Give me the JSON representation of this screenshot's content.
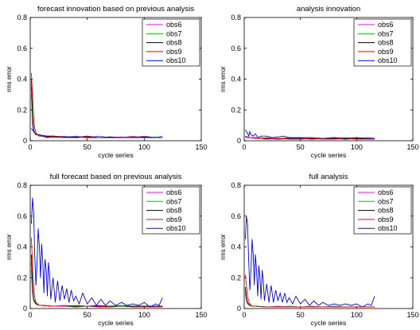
{
  "chart_data": [
    {
      "type": "line",
      "title": "forecast innovation based on previous analysis",
      "xlabel": "cycle series",
      "ylabel": "rms error",
      "xlim": [
        0,
        150
      ],
      "ylim": [
        0,
        0.8
      ],
      "xticks": [
        "0",
        "50",
        "100",
        "150"
      ],
      "yticks": [
        "0",
        "0.2",
        "0.4",
        "0.6",
        "0.8"
      ],
      "legend": "top-right",
      "grid": false,
      "series": [
        {
          "name": "obs6",
          "color": "#ff00ff",
          "x": [
            1,
            2,
            3,
            4,
            5,
            6,
            8,
            10,
            15,
            20,
            30,
            40,
            50,
            60,
            70,
            80,
            90,
            100,
            110,
            116
          ],
          "y": [
            0.3,
            0.1,
            0.06,
            0.05,
            0.05,
            0.04,
            0.04,
            0.035,
            0.03,
            0.03,
            0.025,
            0.03,
            0.02,
            0.03,
            0.02,
            0.025,
            0.02,
            0.03,
            0.02,
            0.03
          ]
        },
        {
          "name": "obs7",
          "color": "#00cc00",
          "x": [
            1,
            2,
            3,
            4,
            5,
            6,
            8,
            10,
            15,
            20,
            30,
            40,
            50,
            60,
            70,
            80,
            90,
            100,
            110,
            116
          ],
          "y": [
            0.35,
            0.12,
            0.06,
            0.05,
            0.04,
            0.04,
            0.035,
            0.03,
            0.03,
            0.02,
            0.03,
            0.02,
            0.03,
            0.02,
            0.025,
            0.02,
            0.03,
            0.02,
            0.025,
            0.02
          ]
        },
        {
          "name": "obs8",
          "color": "#000000",
          "x": [
            1,
            2,
            3,
            4,
            5,
            6,
            8,
            10,
            15,
            20,
            30,
            40,
            50,
            60,
            70,
            80,
            90,
            100,
            110,
            116
          ],
          "y": [
            0.4,
            0.15,
            0.07,
            0.05,
            0.04,
            0.04,
            0.03,
            0.03,
            0.025,
            0.03,
            0.02,
            0.025,
            0.02,
            0.02,
            0.025,
            0.02,
            0.02,
            0.025,
            0.02,
            0.02
          ]
        },
        {
          "name": "obs9",
          "color": "#ff0000",
          "x": [
            1,
            2,
            3,
            4,
            5,
            6,
            8,
            10,
            15,
            20,
            30,
            40,
            50,
            60,
            70,
            80,
            90,
            100,
            110,
            116
          ],
          "y": [
            0.44,
            0.3,
            0.15,
            0.08,
            0.05,
            0.04,
            0.03,
            0.03,
            0.02,
            0.025,
            0.02,
            0.02,
            0.025,
            0.02,
            0.02,
            0.02,
            0.025,
            0.02,
            0.02,
            0.02
          ]
        },
        {
          "name": "obs10",
          "color": "#0000ff",
          "x": [
            1,
            2,
            3,
            4,
            5,
            6,
            8,
            10,
            15,
            20,
            30,
            40,
            50,
            60,
            70,
            80,
            90,
            100,
            110,
            116
          ],
          "y": [
            0.08,
            0.07,
            0.06,
            0.05,
            0.045,
            0.04,
            0.04,
            0.035,
            0.03,
            0.03,
            0.025,
            0.02,
            0.03,
            0.02,
            0.02,
            0.02,
            0.02,
            0.02,
            0.02,
            0.02
          ]
        }
      ]
    },
    {
      "type": "line",
      "title": "analysis innovation",
      "xlabel": "cycle series",
      "ylabel": "rms error",
      "xlim": [
        0,
        150
      ],
      "ylim": [
        0,
        0.8
      ],
      "xticks": [
        "0",
        "50",
        "100",
        "150"
      ],
      "yticks": [
        "0",
        "0.2",
        "0.4",
        "0.6",
        "0.8"
      ],
      "legend": "top-right",
      "grid": false,
      "series": [
        {
          "name": "obs6",
          "color": "#ff00ff",
          "x": [
            1,
            3,
            5,
            10,
            15,
            20,
            30,
            40,
            50,
            60,
            70,
            80,
            90,
            100,
            110,
            116
          ],
          "y": [
            0.03,
            0.025,
            0.02,
            0.02,
            0.015,
            0.02,
            0.015,
            0.015,
            0.02,
            0.015,
            0.015,
            0.02,
            0.015,
            0.015,
            0.02,
            0.015
          ]
        },
        {
          "name": "obs7",
          "color": "#00cc00",
          "x": [
            1,
            3,
            5,
            10,
            15,
            20,
            30,
            40,
            50,
            60,
            70,
            80,
            90,
            100,
            110,
            116
          ],
          "y": [
            0.03,
            0.02,
            0.02,
            0.015,
            0.02,
            0.015,
            0.015,
            0.02,
            0.015,
            0.015,
            0.015,
            0.015,
            0.02,
            0.015,
            0.015,
            0.015
          ]
        },
        {
          "name": "obs8",
          "color": "#000000",
          "x": [
            1,
            3,
            5,
            10,
            15,
            20,
            30,
            40,
            50,
            60,
            70,
            80,
            90,
            100,
            110,
            116
          ],
          "y": [
            0.025,
            0.02,
            0.02,
            0.015,
            0.015,
            0.015,
            0.01,
            0.015,
            0.015,
            0.01,
            0.015,
            0.015,
            0.01,
            0.015,
            0.01,
            0.01
          ]
        },
        {
          "name": "obs9",
          "color": "#ff0000",
          "x": [
            1,
            3,
            5,
            10,
            15,
            20,
            30,
            40,
            50,
            60,
            70,
            80,
            90,
            100,
            110,
            116
          ],
          "y": [
            0.03,
            0.02,
            0.02,
            0.015,
            0.015,
            0.01,
            0.015,
            0.01,
            0.01,
            0.015,
            0.01,
            0.01,
            0.015,
            0.01,
            0.01,
            0.01
          ]
        },
        {
          "name": "obs10",
          "color": "#0000ff",
          "x": [
            1,
            2,
            3,
            4,
            5,
            6,
            8,
            10,
            12,
            15,
            20,
            25,
            30,
            35,
            40,
            50,
            60,
            70,
            80,
            90,
            100,
            110,
            116
          ],
          "y": [
            0.07,
            0.06,
            0.05,
            0.03,
            0.06,
            0.04,
            0.03,
            0.045,
            0.02,
            0.03,
            0.03,
            0.02,
            0.025,
            0.03,
            0.02,
            0.02,
            0.02,
            0.015,
            0.02,
            0.015,
            0.02,
            0.015,
            0.015
          ]
        }
      ]
    },
    {
      "type": "line",
      "title": "full forecast based on previous analysis",
      "xlabel": "cycle series",
      "ylabel": "rms error",
      "xlim": [
        0,
        150
      ],
      "ylim": [
        0,
        0.8
      ],
      "xticks": [
        "0",
        "50",
        "100",
        "150"
      ],
      "yticks": [
        "0",
        "0.2",
        "0.4",
        "0.6",
        "0.8"
      ],
      "legend": "top-right",
      "grid": false,
      "series": [
        {
          "name": "obs6",
          "color": "#ff00ff",
          "x": [
            1,
            2,
            3,
            5,
            8,
            10,
            20,
            30,
            40,
            50,
            60,
            70,
            80,
            90,
            100,
            110,
            116
          ],
          "y": [
            0.25,
            0.1,
            0.05,
            0.03,
            0.02,
            0.02,
            0.015,
            0.02,
            0.015,
            0.015,
            0.02,
            0.015,
            0.015,
            0.015,
            0.015,
            0.015,
            0.015
          ]
        },
        {
          "name": "obs7",
          "color": "#00cc00",
          "x": [
            1,
            2,
            3,
            5,
            8,
            10,
            20,
            30,
            40,
            50,
            60,
            70,
            80,
            90,
            100,
            110,
            116
          ],
          "y": [
            0.3,
            0.12,
            0.05,
            0.03,
            0.02,
            0.02,
            0.015,
            0.015,
            0.02,
            0.015,
            0.015,
            0.015,
            0.02,
            0.015,
            0.015,
            0.015,
            0.015
          ]
        },
        {
          "name": "obs8",
          "color": "#000000",
          "x": [
            1,
            2,
            3,
            5,
            8,
            10,
            20,
            30,
            40,
            50,
            60,
            70,
            80,
            90,
            100,
            110,
            116
          ],
          "y": [
            0.35,
            0.14,
            0.06,
            0.03,
            0.02,
            0.02,
            0.015,
            0.015,
            0.015,
            0.015,
            0.015,
            0.015,
            0.015,
            0.015,
            0.015,
            0.015,
            0.015
          ]
        },
        {
          "name": "obs9",
          "color": "#ff0000",
          "x": [
            1,
            2,
            3,
            4,
            5,
            8,
            10,
            20,
            30,
            40,
            50,
            60,
            70,
            80,
            90,
            100,
            110,
            116
          ],
          "y": [
            0.46,
            0.28,
            0.14,
            0.07,
            0.04,
            0.02,
            0.02,
            0.015,
            0.015,
            0.01,
            0.015,
            0.01,
            0.01,
            0.015,
            0.01,
            0.01,
            0.01,
            0.01
          ]
        },
        {
          "name": "obs10",
          "color": "#0000ff",
          "x": [
            1,
            2,
            3,
            4,
            5,
            6,
            7,
            8,
            9,
            10,
            11,
            12,
            13,
            14,
            15,
            16,
            17,
            18,
            20,
            22,
            24,
            26,
            28,
            30,
            32,
            34,
            36,
            38,
            40,
            43,
            46,
            50,
            54,
            58,
            62,
            66,
            70,
            75,
            80,
            85,
            90,
            95,
            100,
            105,
            110,
            113,
            116
          ],
          "y": [
            0.55,
            0.72,
            0.62,
            0.35,
            0.15,
            0.3,
            0.52,
            0.4,
            0.2,
            0.42,
            0.3,
            0.1,
            0.32,
            0.25,
            0.08,
            0.3,
            0.22,
            0.06,
            0.2,
            0.04,
            0.18,
            0.05,
            0.15,
            0.06,
            0.13,
            0.04,
            0.12,
            0.05,
            0.08,
            0.03,
            0.1,
            0.03,
            0.07,
            0.02,
            0.06,
            0.02,
            0.05,
            0.02,
            0.04,
            0.02,
            0.03,
            0.02,
            0.04,
            0.01,
            0.03,
            0.02,
            0.07
          ]
        }
      ]
    },
    {
      "type": "line",
      "title": "full analysis",
      "xlabel": "cycle series",
      "ylabel": "rms error",
      "xlim": [
        0,
        150
      ],
      "ylim": [
        0,
        0.8
      ],
      "xticks": [
        "0",
        "50",
        "100",
        "150"
      ],
      "yticks": [
        "0",
        "0.2",
        "0.4",
        "0.6",
        "0.8"
      ],
      "legend": "top-right",
      "grid": false,
      "series": [
        {
          "name": "obs6",
          "color": "#ff00ff",
          "x": [
            1,
            2,
            3,
            5,
            8,
            10,
            20,
            30,
            40,
            50,
            60,
            70,
            80,
            90,
            100,
            110,
            116
          ],
          "y": [
            0.1,
            0.05,
            0.03,
            0.02,
            0.015,
            0.015,
            0.01,
            0.015,
            0.01,
            0.01,
            0.015,
            0.01,
            0.01,
            0.01,
            0.01,
            0.01,
            0.01
          ]
        },
        {
          "name": "obs7",
          "color": "#00cc00",
          "x": [
            1,
            2,
            3,
            5,
            8,
            10,
            20,
            30,
            40,
            50,
            60,
            70,
            80,
            90,
            100,
            110,
            116
          ],
          "y": [
            0.12,
            0.06,
            0.03,
            0.02,
            0.015,
            0.015,
            0.01,
            0.01,
            0.015,
            0.01,
            0.01,
            0.01,
            0.015,
            0.01,
            0.01,
            0.01,
            0.01
          ]
        },
        {
          "name": "obs8",
          "color": "#000000",
          "x": [
            1,
            2,
            3,
            5,
            8,
            10,
            20,
            30,
            40,
            50,
            60,
            70,
            80,
            90,
            100,
            110,
            116
          ],
          "y": [
            0.14,
            0.07,
            0.04,
            0.02,
            0.015,
            0.015,
            0.01,
            0.01,
            0.01,
            0.01,
            0.01,
            0.01,
            0.01,
            0.01,
            0.01,
            0.01,
            0.01
          ]
        },
        {
          "name": "obs9",
          "color": "#ff0000",
          "x": [
            1,
            2,
            3,
            4,
            5,
            6,
            8,
            10,
            20,
            30,
            40,
            50,
            60,
            70,
            80,
            90,
            100,
            110,
            116
          ],
          "y": [
            0.22,
            0.15,
            0.08,
            0.05,
            0.03,
            0.02,
            0.015,
            0.015,
            0.01,
            0.01,
            0.01,
            0.01,
            0.01,
            0.01,
            0.01,
            0.01,
            0.01,
            0.01,
            0.01
          ]
        },
        {
          "name": "obs10",
          "color": "#0000ff",
          "x": [
            1,
            2,
            3,
            4,
            5,
            6,
            7,
            8,
            9,
            10,
            11,
            12,
            13,
            14,
            15,
            16,
            17,
            18,
            20,
            22,
            24,
            26,
            28,
            30,
            32,
            34,
            36,
            38,
            40,
            43,
            46,
            50,
            54,
            58,
            62,
            66,
            70,
            75,
            80,
            85,
            90,
            95,
            100,
            105,
            110,
            113,
            116
          ],
          "y": [
            0.45,
            0.6,
            0.55,
            0.3,
            0.12,
            0.25,
            0.45,
            0.35,
            0.15,
            0.35,
            0.25,
            0.08,
            0.28,
            0.2,
            0.06,
            0.25,
            0.18,
            0.05,
            0.16,
            0.04,
            0.15,
            0.04,
            0.12,
            0.05,
            0.1,
            0.04,
            0.1,
            0.04,
            0.07,
            0.03,
            0.08,
            0.03,
            0.06,
            0.02,
            0.05,
            0.02,
            0.04,
            0.02,
            0.03,
            0.02,
            0.03,
            0.02,
            0.03,
            0.01,
            0.03,
            0.02,
            0.08
          ]
        }
      ]
    }
  ]
}
